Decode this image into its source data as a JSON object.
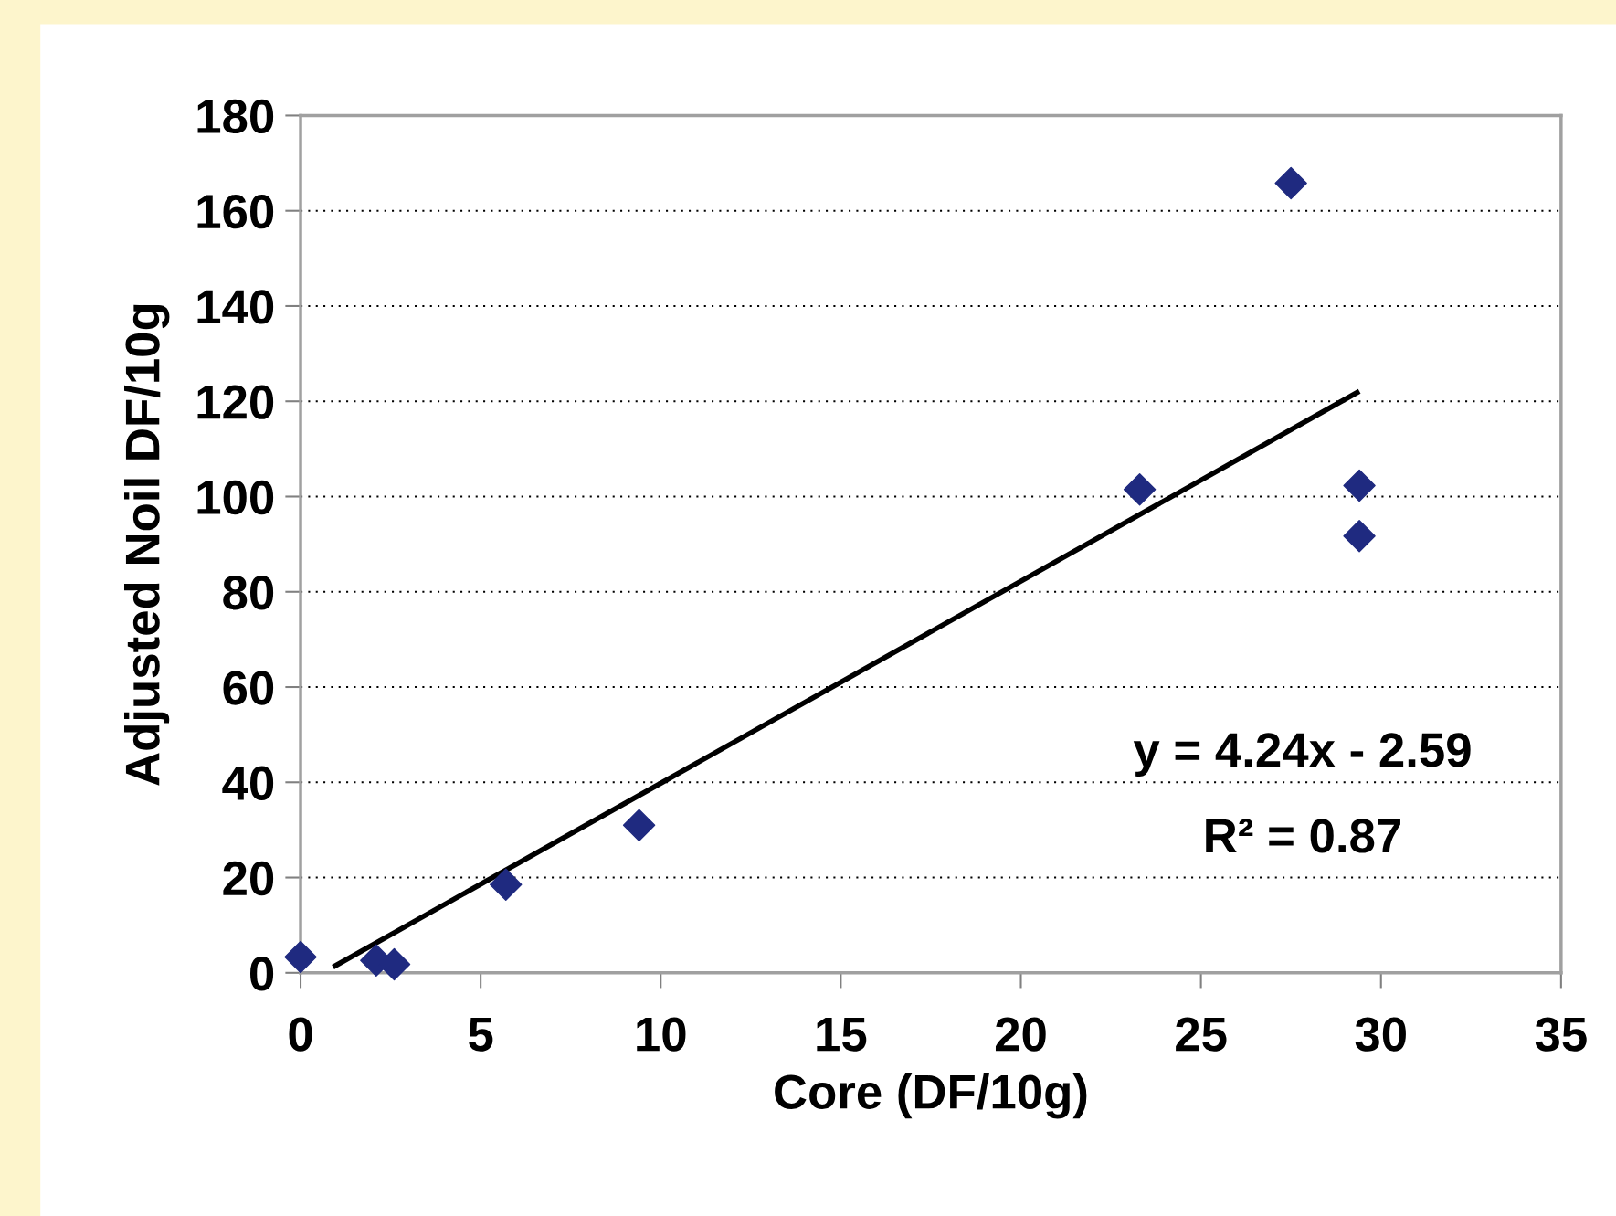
{
  "chart_data": {
    "type": "scatter",
    "xlabel": "Core (DF/10g)",
    "ylabel": "Adjusted Noil DF/10g",
    "series": [
      {
        "color": "#1f2a80",
        "marker": "diamond",
        "x": [
          0,
          2.1,
          2.6,
          5.7,
          9.4,
          23.3,
          27.5,
          29.4,
          29.4
        ],
        "values": [
          3.3,
          2.6,
          1.8,
          18.5,
          31,
          101.5,
          165.8,
          102.3,
          91.7
        ]
      },
      {
        "type": "line",
        "color": "#000000",
        "marker": "none",
        "x": [
          0.9,
          29.4
        ],
        "values": [
          1.2,
          122.1
        ]
      }
    ],
    "annotations": [
      "y = 4.24x - 2.59",
      "R² = 0.87"
    ],
    "xlim": [
      0,
      35
    ],
    "xticks": [
      0,
      5,
      10,
      15,
      20,
      25,
      30,
      35
    ],
    "ylim": [
      0,
      180
    ],
    "yticks": [
      0,
      20,
      40,
      60,
      80,
      100,
      120,
      140,
      160,
      180
    ],
    "grid": "y",
    "legend": false
  }
}
